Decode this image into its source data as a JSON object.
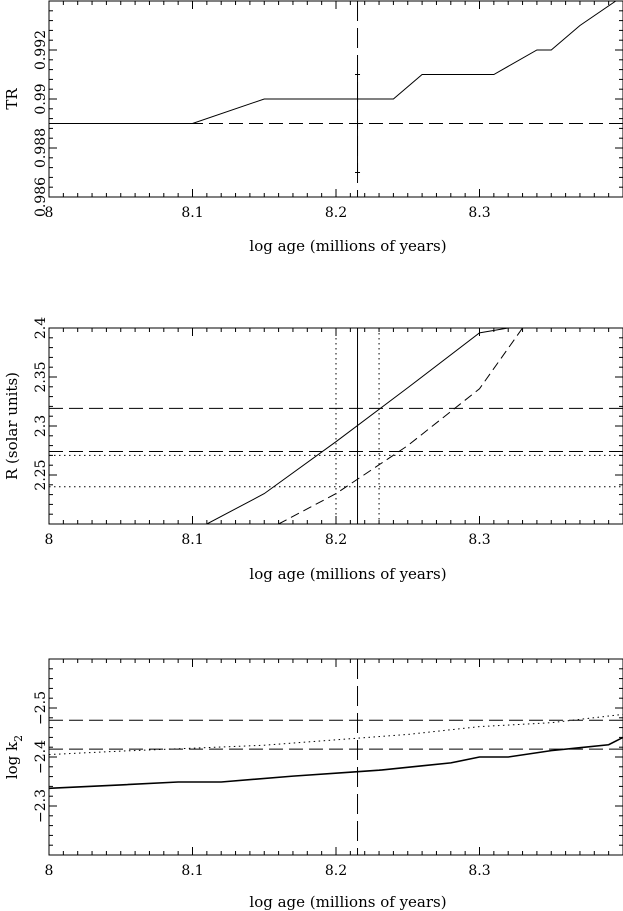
{
  "chart_data": [
    {
      "type": "line",
      "xlabel": "log age (millions of years)",
      "ylabel": "TR",
      "xlim": [
        8.0,
        8.4
      ],
      "ylim": [
        0.986,
        0.994
      ],
      "xticks": [
        8.0,
        8.1,
        8.2,
        8.3
      ],
      "xtick_labels": [
        "8",
        "8.1",
        "8.2",
        "8.3"
      ],
      "yticks": [
        0.986,
        0.988,
        0.99,
        0.992
      ],
      "ytick_labels": [
        "0.986",
        "0.988",
        "0.99",
        "0.992"
      ],
      "series": [
        {
          "style": "solid",
          "x": [
            8.0,
            8.1,
            8.15,
            8.24,
            8.26,
            8.31,
            8.34,
            8.35,
            8.37,
            8.395
          ],
          "y": [
            0.989,
            0.989,
            0.99,
            0.99,
            0.991,
            0.991,
            0.992,
            0.992,
            0.993,
            0.994
          ]
        }
      ],
      "hlines": [
        {
          "y": 0.989,
          "style": "dashed"
        }
      ],
      "vlines": [
        {
          "x": 8.215,
          "style": "longdash"
        }
      ],
      "errorbars": [
        {
          "x": 8.215,
          "ylow": 0.987,
          "yhigh": 0.991
        }
      ]
    },
    {
      "type": "line",
      "xlabel": "log age (millions of years)",
      "ylabel": "R (solar units)",
      "xlim": [
        8.0,
        8.4
      ],
      "ylim": [
        2.2,
        2.4
      ],
      "xticks": [
        8.0,
        8.1,
        8.2,
        8.3
      ],
      "xtick_labels": [
        "8",
        "8.1",
        "8.2",
        "8.3"
      ],
      "yticks": [
        2.25,
        2.3,
        2.35,
        2.4
      ],
      "ytick_labels": [
        "2.25",
        "2.3",
        "2.35",
        "2.4"
      ],
      "series": [
        {
          "style": "solid",
          "x": [
            8.11,
            8.15,
            8.2,
            8.25,
            8.3,
            8.32
          ],
          "y": [
            2.2,
            2.231,
            2.284,
            2.339,
            2.395,
            2.4
          ]
        },
        {
          "style": "dashed",
          "x": [
            8.16,
            8.2,
            8.25,
            8.3,
            8.33
          ],
          "y": [
            2.2,
            2.231,
            2.28,
            2.338,
            2.4
          ]
        }
      ],
      "hlines": [
        {
          "y": 2.318,
          "style": "dashed"
        },
        {
          "y": 2.274,
          "style": "dashed"
        },
        {
          "y": 2.27,
          "style": "dotted"
        },
        {
          "y": 2.238,
          "style": "dotted"
        }
      ],
      "vlines": [
        {
          "x": 8.215,
          "style": "solid"
        },
        {
          "x": 8.2,
          "style": "dotted"
        },
        {
          "x": 8.23,
          "style": "dotted"
        }
      ]
    },
    {
      "type": "line",
      "xlabel": "log age (millions of years)",
      "ylabel": "log k",
      "ylabel_subscript": "2",
      "xlim": [
        8.0,
        8.4
      ],
      "ylim": [
        -2.2,
        -2.6
      ],
      "xticks": [
        8.0,
        8.1,
        8.2,
        8.3
      ],
      "xtick_labels": [
        "8",
        "8.1",
        "8.2",
        "8.3"
      ],
      "yticks": [
        -2.3,
        -2.4,
        -2.5
      ],
      "ytick_labels": [
        "−2.3",
        "−2.4",
        "−2.5"
      ],
      "series": [
        {
          "style": "solid",
          "x": [
            8.0,
            8.05,
            8.09,
            8.12,
            8.17,
            8.21,
            8.23,
            8.26,
            8.28,
            8.3,
            8.32,
            8.35,
            8.37,
            8.39,
            8.4
          ],
          "y": [
            -2.336,
            -2.343,
            -2.349,
            -2.349,
            -2.361,
            -2.369,
            -2.373,
            -2.382,
            -2.388,
            -2.4,
            -2.4,
            -2.413,
            -2.419,
            -2.425,
            -2.44
          ]
        },
        {
          "style": "dotted",
          "x": [
            8.0,
            8.05,
            8.1,
            8.15,
            8.2,
            8.25,
            8.3,
            8.35,
            8.4
          ],
          "y": [
            -2.405,
            -2.412,
            -2.418,
            -2.424,
            -2.435,
            -2.446,
            -2.462,
            -2.47,
            -2.487
          ]
        }
      ],
      "hlines": [
        {
          "y": -2.475,
          "style": "dashed"
        },
        {
          "y": -2.416,
          "style": "dashed"
        }
      ],
      "vlines": [
        {
          "x": 8.215,
          "style": "longdash"
        }
      ]
    }
  ]
}
